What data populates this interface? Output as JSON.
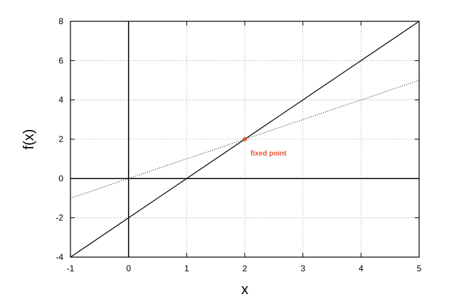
{
  "chart_data": {
    "type": "line",
    "title": "",
    "xlabel": "x",
    "ylabel": "f(x)",
    "xlim": [
      -1,
      5
    ],
    "ylim": [
      -4,
      8
    ],
    "x_ticks": [
      -1,
      0,
      1,
      2,
      3,
      4,
      5
    ],
    "y_ticks": [
      -4,
      -2,
      0,
      2,
      4,
      6,
      8
    ],
    "x_tick_labels": [
      "-1",
      "0",
      "1",
      "2",
      "3",
      "4",
      "5"
    ],
    "y_tick_labels": [
      "-4",
      "-2",
      "0",
      "2",
      "4",
      "6",
      "8"
    ],
    "grid": true,
    "series": [
      {
        "style": "solid",
        "color": "#000000",
        "x": [
          -1,
          5
        ],
        "y": [
          -4,
          8
        ]
      },
      {
        "style": "dotted",
        "color": "#000000",
        "x": [
          -1,
          5
        ],
        "y": [
          -1,
          5
        ]
      }
    ],
    "annotations": [
      {
        "text": "fixed point",
        "x": 2,
        "y": 2,
        "color": "#e8553a"
      }
    ]
  }
}
